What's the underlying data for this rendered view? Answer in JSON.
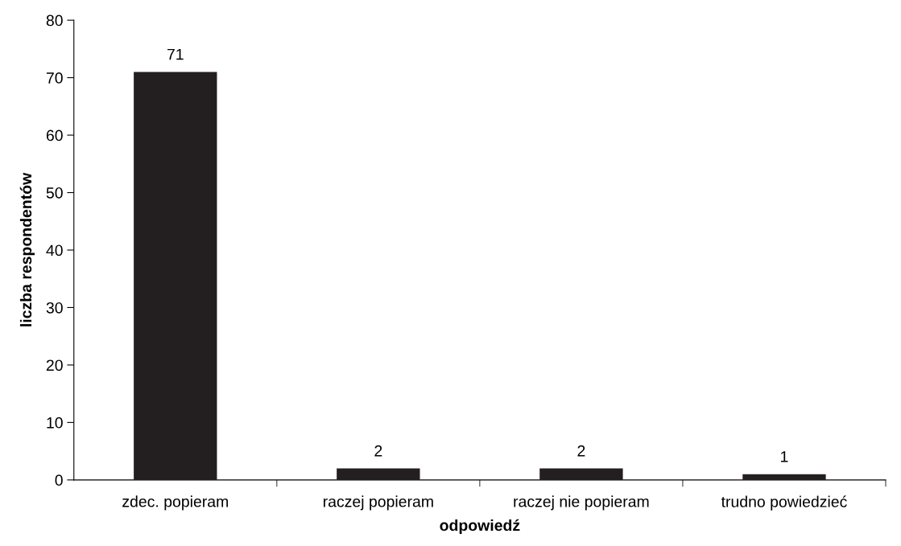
{
  "chart_data": {
    "type": "bar",
    "xlabel": "odpowiedź",
    "ylabel": "liczba respondentów",
    "categories": [
      "zdec. popieram",
      "raczej popieram",
      "raczej nie popieram",
      "trudno powiedzieć"
    ],
    "values": [
      71,
      2,
      2,
      1
    ],
    "color": "#231f20",
    "ylim": [
      0,
      80
    ],
    "yticks": [
      0,
      10,
      20,
      30,
      40,
      50,
      60,
      70,
      80
    ],
    "grid": false,
    "data_labels": true
  }
}
